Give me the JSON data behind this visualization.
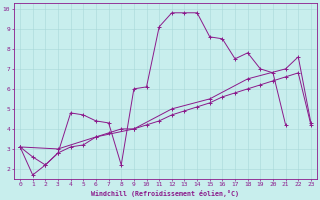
{
  "xlabel": "Windchill (Refroidissement éolien,°C)",
  "xlim": [
    -0.5,
    23.5
  ],
  "ylim": [
    1.5,
    10.3
  ],
  "xticks": [
    0,
    1,
    2,
    3,
    4,
    5,
    6,
    7,
    8,
    9,
    10,
    11,
    12,
    13,
    14,
    15,
    16,
    17,
    18,
    19,
    20,
    21,
    22,
    23
  ],
  "yticks": [
    2,
    3,
    4,
    5,
    6,
    7,
    8,
    9,
    10
  ],
  "background_color": "#c8eeed",
  "grid_color": "#a8d8d8",
  "line_color": "#8b1a8b",
  "line1_x": [
    0,
    1,
    2,
    3,
    4,
    5,
    6,
    7,
    8,
    9,
    10,
    11,
    12,
    13,
    14,
    15,
    16,
    17,
    18,
    19,
    20,
    21
  ],
  "line1_y": [
    3.1,
    1.7,
    2.2,
    2.8,
    4.8,
    4.7,
    4.4,
    4.3,
    2.2,
    6.0,
    6.1,
    9.1,
    9.8,
    9.8,
    9.8,
    8.6,
    8.5,
    7.5,
    7.8,
    7.0,
    6.8,
    4.2
  ],
  "line2_x": [
    0,
    1,
    2,
    3,
    4,
    5,
    6,
    7,
    8,
    9,
    10,
    11,
    12,
    13,
    14,
    15,
    16,
    17,
    18,
    19,
    20,
    21,
    22,
    23
  ],
  "line2_y": [
    3.1,
    2.6,
    2.2,
    2.8,
    3.1,
    3.2,
    3.6,
    3.8,
    4.0,
    4.0,
    4.2,
    4.4,
    4.7,
    4.9,
    5.1,
    5.3,
    5.6,
    5.8,
    6.0,
    6.2,
    6.4,
    6.6,
    6.8,
    4.2
  ],
  "line3_x": [
    0,
    3,
    6,
    9,
    12,
    15,
    18,
    21,
    22,
    23
  ],
  "line3_y": [
    3.1,
    3.0,
    3.6,
    4.0,
    5.0,
    5.5,
    6.5,
    7.0,
    7.6,
    4.3
  ]
}
